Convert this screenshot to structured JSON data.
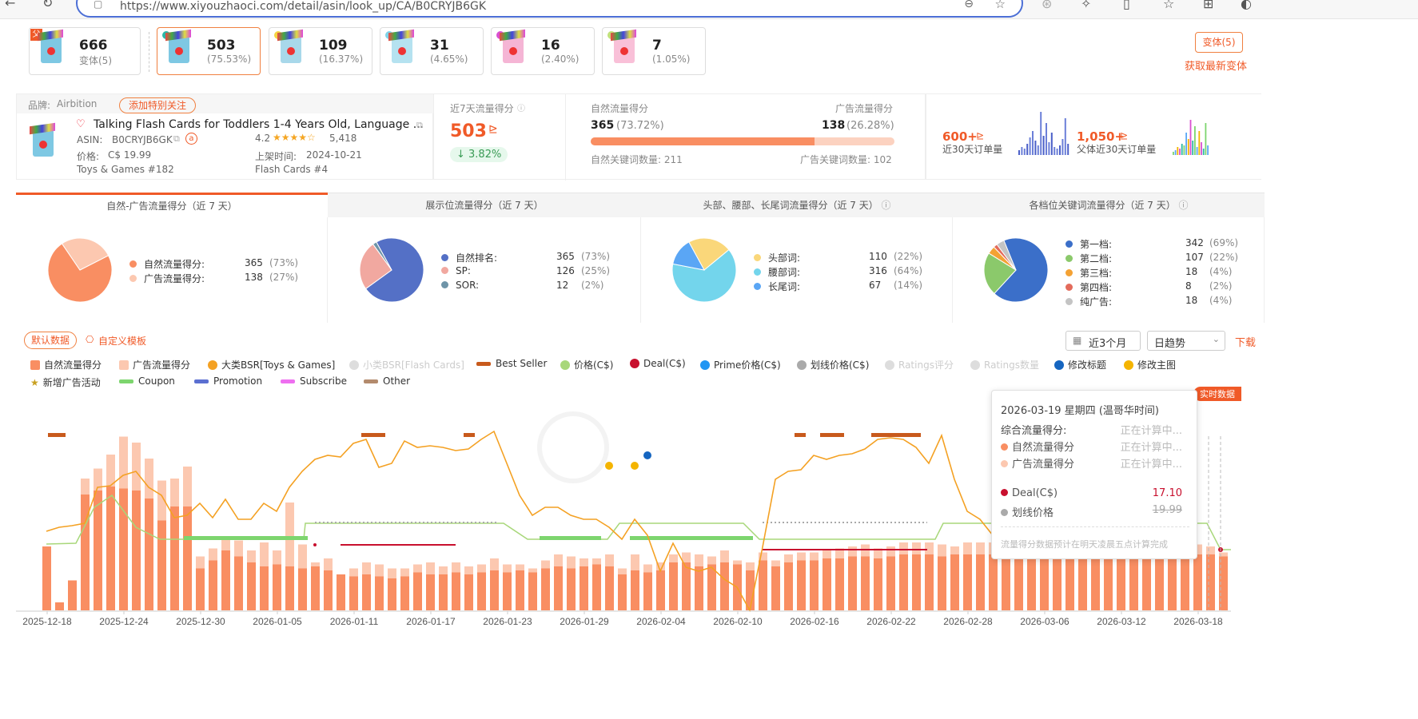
{
  "browser": {
    "url": "https://www.xiyouzhaoci.com/detail/asin/look_up/CA/B0CRYJB6GK"
  },
  "variants": [
    {
      "num": "666",
      "sub": "变体(5)",
      "tag": "父",
      "dot": ""
    },
    {
      "num": "503",
      "sub": "(75.53%)",
      "tag": "",
      "dot": "#2bb7a6"
    },
    {
      "num": "109",
      "sub": "(16.37%)",
      "tag": "",
      "dot": "#f5d442"
    },
    {
      "num": "31",
      "sub": "(4.65%)",
      "tag": "",
      "dot": "#7fd3e8"
    },
    {
      "num": "16",
      "sub": "(2.40%)",
      "tag": "",
      "dot": "#d94fd1"
    },
    {
      "num": "7",
      "sub": "(1.05%)",
      "tag": "",
      "dot": "#c2e07a"
    }
  ],
  "variant_btn": "变体(5)",
  "refresh_link": "获取最新变体",
  "product": {
    "brand_label": "品牌:",
    "brand": "Airbition",
    "follow_btn": "添加特别关注",
    "title": "Talking Flash Cards for Toddlers 1-4 Years Old, Language ...",
    "asin_label": "ASIN:",
    "asin": "B0CRYJB6GK",
    "rating": "4.2",
    "stars": "★★★★☆",
    "reviews": "5,418",
    "price_label": "价格:",
    "price": "C$ 19.99",
    "listed_label": "上架时间:",
    "listed": "2024-10-21",
    "rank1": "Toys & Games  #182",
    "rank2": "Flash Cards  #4"
  },
  "traffic": {
    "title": "近7天流量得分",
    "score": "503",
    "change": "↓ 3.82%",
    "natural_label": "自然流量得分",
    "natural_value": "365",
    "natural_pct": "(73.72%)",
    "ad_label": "广告流量得分",
    "ad_value": "138",
    "ad_pct": "(26.28%)",
    "natural_frac": 0.7372,
    "natural_kw": "自然关键词数量: 211",
    "ad_kw": "广告关键词数量: 102"
  },
  "orders": {
    "v1": "600+",
    "l1": "近30天订单量",
    "v2": "1,050+",
    "l2": "父体近30天订单量"
  },
  "tabs": [
    "自然-广告流量得分（近 7 天）",
    "展示位流量得分（近 7 天）",
    "头部、腰部、长尾词流量得分（近 7 天）",
    "各档位关键词流量得分（近 7 天）"
  ],
  "pies": [
    [
      {
        "label": "自然流量得分:",
        "value": "365",
        "pct": "(73%)",
        "color": "#f98e62",
        "frac": 0.73
      },
      {
        "label": "广告流量得分:",
        "value": "138",
        "pct": "(27%)",
        "color": "#fcc8b0",
        "frac": 0.27
      }
    ],
    [
      {
        "label": "自然排名:",
        "value": "365",
        "pct": "(73%)",
        "color": "#5470c6",
        "frac": 0.73
      },
      {
        "label": "SP:",
        "value": "126",
        "pct": "(25%)",
        "color": "#f1a8a0",
        "frac": 0.25
      },
      {
        "label": "SOR:",
        "value": "12",
        "pct": "(2%)",
        "color": "#6e94a8",
        "frac": 0.02
      }
    ],
    [
      {
        "label": "头部词:",
        "value": "110",
        "pct": "(22%)",
        "color": "#fad77a",
        "frac": 0.22
      },
      {
        "label": "腰部词:",
        "value": "316",
        "pct": "(64%)",
        "color": "#73d5ec",
        "frac": 0.64
      },
      {
        "label": "长尾词:",
        "value": "67",
        "pct": "(14%)",
        "color": "#5aa6f5",
        "frac": 0.14
      }
    ],
    [
      {
        "label": "第一档:",
        "value": "342",
        "pct": "(69%)",
        "color": "#3b6fc9",
        "frac": 0.69
      },
      {
        "label": "第二档:",
        "value": "107",
        "pct": "(22%)",
        "color": "#8bc96b",
        "frac": 0.22
      },
      {
        "label": "第三档:",
        "value": "18",
        "pct": "(4%)",
        "color": "#f4a234",
        "frac": 0.04
      },
      {
        "label": "第四档:",
        "value": "8",
        "pct": "(2%)",
        "color": "#e36b5b",
        "frac": 0.02
      },
      {
        "label": "纯广告:",
        "value": "18",
        "pct": "(4%)",
        "color": "#c4c4c4",
        "frac": 0.04
      }
    ]
  ],
  "controls": {
    "default_btn": "默认数据",
    "custom": "自定义模板",
    "range": "近3个月",
    "trend": "日趋势",
    "download": "下载",
    "realtime": "实时数据"
  },
  "legend1": [
    {
      "label": "自然流量得分",
      "type": "sq",
      "color": "#f98e62"
    },
    {
      "label": "广告流量得分",
      "type": "sq",
      "color": "#fcc8b0"
    },
    {
      "label": "大类BSR[Toys & Games]",
      "type": "ci",
      "color": "#f4a123"
    },
    {
      "label": "小类BSR[Flash Cards]",
      "type": "ci",
      "color": "#ddd",
      "fade": true
    },
    {
      "label": "Best Seller",
      "type": "ln",
      "color": "#c85a1c"
    },
    {
      "label": "价格(C$)",
      "type": "ci",
      "color": "#a8d77a"
    },
    {
      "label": "Deal(C$)",
      "type": "ci",
      "color": "#c8102e"
    },
    {
      "label": "Prime价格(C$)",
      "type": "ci",
      "color": "#2196f3"
    },
    {
      "label": "划线价格(C$)",
      "type": "ci",
      "color": "#aaa"
    },
    {
      "label": "Ratings评分",
      "type": "ci",
      "color": "#ddd",
      "fade": true
    },
    {
      "label": "Ratings数量",
      "type": "ci",
      "color": "#ddd",
      "fade": true
    },
    {
      "label": "修改标题",
      "type": "ci",
      "color": "#1565c0"
    },
    {
      "label": "修改主图",
      "type": "ci",
      "color": "#f4b400"
    }
  ],
  "legend2": [
    {
      "label": "新增广告活动",
      "type": "star",
      "color": "#c8a020"
    },
    {
      "label": "Coupon",
      "type": "ln",
      "color": "#7dd56e"
    },
    {
      "label": "Promotion",
      "type": "ln",
      "color": "#5b6fd1"
    },
    {
      "label": "Subscribe",
      "type": "ln",
      "color": "#ee6ff0"
    },
    {
      "label": "Other",
      "type": "ln",
      "color": "#b38b6d"
    }
  ],
  "tooltip": {
    "date": "2026-03-19 星期四 (温哥华时间)",
    "rows": [
      {
        "label": "综合流量得分:",
        "value": "正在计算中..."
      },
      {
        "label": "自然流量得分",
        "value": "正在计算中..."
      },
      {
        "label": "广告流量得分",
        "value": "正在计算中..."
      }
    ],
    "deal_label": "Deal(C$)",
    "deal_value": "17.10",
    "strike_label": "划线价格",
    "strike_value": "19.99",
    "note": "流量得分数据预计在明天凌晨五点计算完成"
  },
  "chart_data": {
    "type": "bar",
    "x_ticks": [
      "2025-12-18",
      "2025-12-24",
      "2025-12-30",
      "2026-01-05",
      "2026-01-11",
      "2026-01-17",
      "2026-01-23",
      "2026-01-29",
      "2026-02-04",
      "2026-02-10",
      "2026-02-16",
      "2026-02-22",
      "2026-02-28",
      "2026-03-06",
      "2026-03-12",
      "2026-03-18"
    ],
    "series": [
      {
        "name": "自然流量得分",
        "values": [
          160,
          20,
          75,
          290,
          300,
          310,
          305,
          300,
          280,
          225,
          260,
          260,
          105,
          125,
          150,
          135,
          120,
          110,
          115,
          110,
          105,
          110,
          100,
          90,
          85,
          90,
          85,
          80,
          85,
          95,
          90,
          90,
          95,
          90,
          95,
          100,
          95,
          100,
          95,
          105,
          110,
          105,
          110,
          115,
          110,
          90,
          100,
          95,
          100,
          120,
          120,
          110,
          115,
          120,
          115,
          100,
          125,
          110,
          120,
          125,
          125,
          130,
          130,
          135,
          135,
          130,
          135,
          140,
          140,
          140,
          135,
          140,
          140,
          140,
          140,
          140,
          140,
          140,
          140,
          140,
          140,
          140,
          140,
          140,
          140,
          140,
          135,
          140,
          140,
          140,
          140,
          140,
          135
        ]
      },
      {
        "name": "广告流量得分",
        "values": [
          0,
          0,
          0,
          40,
          55,
          80,
          130,
          120,
          100,
          100,
          70,
          100,
          30,
          30,
          30,
          40,
          30,
          60,
          35,
          160,
          60,
          10,
          30,
          0,
          20,
          30,
          30,
          25,
          20,
          20,
          30,
          20,
          25,
          20,
          20,
          30,
          20,
          15,
          10,
          20,
          30,
          30,
          20,
          15,
          30,
          15,
          40,
          20,
          20,
          20,
          25,
          30,
          20,
          30,
          10,
          20,
          20,
          15,
          20,
          20,
          20,
          20,
          25,
          25,
          30,
          25,
          25,
          30,
          30,
          30,
          30,
          20,
          30,
          30,
          30,
          30,
          25,
          25,
          30,
          25,
          25,
          30,
          25,
          30,
          25,
          20,
          20,
          25,
          25,
          25,
          25,
          20,
          10
        ]
      }
    ]
  }
}
